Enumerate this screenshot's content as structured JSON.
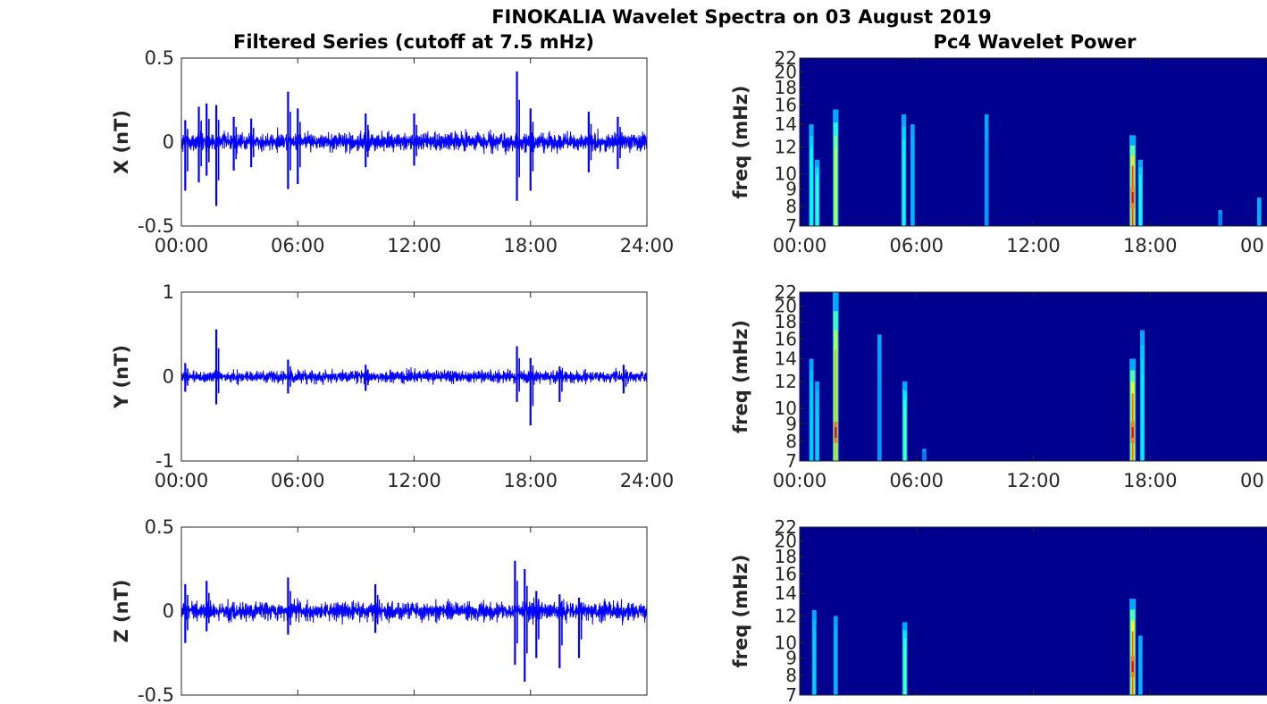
{
  "figure": {
    "suptitle": "FINOKALIA Wavelet Spectra on 03 August 2019",
    "left_column_title": "Filtered Series (cutoff at 7.5 mHz)",
    "right_column_title": "Pc4 Wavelet Power"
  },
  "colors": {
    "series": "#0000ff",
    "spectrogram_background": "#00008f",
    "axes": "#262626"
  },
  "chart_data": [
    {
      "type": "line",
      "panel": "X",
      "title": "Filtered Series (cutoff at 7.5 mHz)",
      "xlabel": "",
      "ylabel": "X (nT)",
      "xlim": [
        0,
        24
      ],
      "ylim": [
        -0.5,
        0.5
      ],
      "xticks": [
        "00:00",
        "06:00",
        "12:00",
        "18:00",
        "24:00"
      ],
      "yticks": [
        "0.5",
        "0",
        "-0.5"
      ],
      "noise_amplitude": 0.06,
      "events": [
        {
          "t": 0.2,
          "ymin": -0.29,
          "ymax": 0.13
        },
        {
          "t": 0.9,
          "ymin": -0.24,
          "ymax": 0.21
        },
        {
          "t": 1.3,
          "ymin": -0.2,
          "ymax": 0.23
        },
        {
          "t": 1.8,
          "ymin": -0.38,
          "ymax": 0.22
        },
        {
          "t": 2.7,
          "ymin": -0.17,
          "ymax": 0.15
        },
        {
          "t": 3.6,
          "ymin": -0.15,
          "ymax": 0.14
        },
        {
          "t": 5.5,
          "ymin": -0.28,
          "ymax": 0.3
        },
        {
          "t": 6.0,
          "ymin": -0.25,
          "ymax": 0.2
        },
        {
          "t": 9.5,
          "ymin": -0.15,
          "ymax": 0.17
        },
        {
          "t": 12.0,
          "ymin": -0.14,
          "ymax": 0.17
        },
        {
          "t": 17.3,
          "ymin": -0.35,
          "ymax": 0.42
        },
        {
          "t": 18.0,
          "ymin": -0.29,
          "ymax": 0.2
        },
        {
          "t": 21.0,
          "ymin": -0.18,
          "ymax": 0.18
        },
        {
          "t": 22.5,
          "ymin": -0.16,
          "ymax": 0.15
        }
      ]
    },
    {
      "type": "line",
      "panel": "Y",
      "xlabel": "",
      "ylabel": "Y (nT)",
      "xlim": [
        0,
        24
      ],
      "ylim": [
        -1,
        1
      ],
      "xticks": [
        "00:00",
        "06:00",
        "12:00",
        "18:00",
        "24:00"
      ],
      "yticks": [
        "1",
        "0",
        "-1"
      ],
      "noise_amplitude": 0.08,
      "events": [
        {
          "t": 0.2,
          "ymin": -0.18,
          "ymax": 0.16
        },
        {
          "t": 1.8,
          "ymin": -0.33,
          "ymax": 0.56
        },
        {
          "t": 5.5,
          "ymin": -0.2,
          "ymax": 0.2
        },
        {
          "t": 9.5,
          "ymin": -0.17,
          "ymax": 0.14
        },
        {
          "t": 17.3,
          "ymin": -0.3,
          "ymax": 0.36
        },
        {
          "t": 18.0,
          "ymin": -0.58,
          "ymax": 0.22
        },
        {
          "t": 19.5,
          "ymin": -0.3,
          "ymax": 0.12
        },
        {
          "t": 22.8,
          "ymin": -0.2,
          "ymax": 0.14
        }
      ]
    },
    {
      "type": "line",
      "panel": "Z",
      "xlabel": "",
      "ylabel": "Z (nT)",
      "xlim": [
        0,
        24
      ],
      "ylim": [
        -0.5,
        0.5
      ],
      "xticks": [],
      "yticks": [
        "0.5",
        "0",
        "-0.5"
      ],
      "noise_amplitude": 0.06,
      "events": [
        {
          "t": 0.2,
          "ymin": -0.19,
          "ymax": 0.16
        },
        {
          "t": 1.3,
          "ymin": -0.12,
          "ymax": 0.18
        },
        {
          "t": 5.5,
          "ymin": -0.14,
          "ymax": 0.2
        },
        {
          "t": 10.0,
          "ymin": -0.13,
          "ymax": 0.16
        },
        {
          "t": 17.2,
          "ymin": -0.32,
          "ymax": 0.3
        },
        {
          "t": 17.7,
          "ymin": -0.42,
          "ymax": 0.25
        },
        {
          "t": 18.3,
          "ymin": -0.28,
          "ymax": 0.12
        },
        {
          "t": 19.5,
          "ymin": -0.34,
          "ymax": 0.1
        },
        {
          "t": 20.5,
          "ymin": -0.28,
          "ymax": 0.08
        }
      ]
    },
    {
      "type": "heatmap",
      "panel": "X",
      "title": "Pc4 Wavelet Power",
      "xlabel": "",
      "ylabel": "freq (mHz)",
      "xlim": [
        0,
        24
      ],
      "ylim": [
        7,
        22
      ],
      "yscale": "log",
      "yticks": [
        "22",
        "20",
        "18",
        "16",
        "14",
        "12",
        "10",
        "9",
        "8",
        "7"
      ],
      "xticks": [
        "00:00",
        "06:00",
        "12:00",
        "18:00",
        "00"
      ],
      "streaks": [
        {
          "t": 0.6,
          "f_max": 14,
          "intensity": 0.45
        },
        {
          "t": 0.9,
          "f_max": 11,
          "intensity": 0.5
        },
        {
          "t": 1.85,
          "f_max": 15.5,
          "intensity": 0.75
        },
        {
          "t": 5.35,
          "f_max": 15,
          "intensity": 0.45
        },
        {
          "t": 5.8,
          "f_max": 14,
          "intensity": 0.3
        },
        {
          "t": 9.6,
          "f_max": 15,
          "intensity": 0.25
        },
        {
          "t": 17.1,
          "f_max": 13,
          "intensity": 1.0
        },
        {
          "t": 17.5,
          "f_max": 11,
          "intensity": 0.45
        },
        {
          "t": 21.6,
          "f_max": 7.8,
          "intensity": 0.2
        },
        {
          "t": 23.6,
          "f_max": 8.5,
          "intensity": 0.3
        }
      ]
    },
    {
      "type": "heatmap",
      "panel": "Y",
      "xlabel": "",
      "ylabel": "freq (mHz)",
      "xlim": [
        0,
        24
      ],
      "ylim": [
        7,
        22
      ],
      "yscale": "log",
      "yticks": [
        "22",
        "20",
        "18",
        "16",
        "14",
        "12",
        "10",
        "9",
        "8",
        "7"
      ],
      "xticks": [
        "00:00",
        "06:00",
        "12:00",
        "18:00",
        "00"
      ],
      "streaks": [
        {
          "t": 0.6,
          "f_max": 14,
          "intensity": 0.35
        },
        {
          "t": 0.9,
          "f_max": 12,
          "intensity": 0.35
        },
        {
          "t": 1.85,
          "f_max": 22,
          "intensity": 0.85
        },
        {
          "t": 4.1,
          "f_max": 16.5,
          "intensity": 0.25
        },
        {
          "t": 5.4,
          "f_max": 12,
          "intensity": 0.55
        },
        {
          "t": 6.4,
          "f_max": 7.6,
          "intensity": 0.2
        },
        {
          "t": 17.1,
          "f_max": 14,
          "intensity": 0.95
        },
        {
          "t": 17.6,
          "f_max": 17,
          "intensity": 0.4
        }
      ]
    },
    {
      "type": "heatmap",
      "panel": "Z",
      "xlabel": "",
      "ylabel": "freq (mHz)",
      "xlim": [
        0,
        24
      ],
      "ylim": [
        7,
        22
      ],
      "yscale": "log",
      "yticks": [
        "22",
        "20",
        "18",
        "16",
        "14",
        "12",
        "10",
        "9",
        "8",
        "7"
      ],
      "xticks": [],
      "streaks": [
        {
          "t": 0.75,
          "f_max": 12.5,
          "intensity": 0.35
        },
        {
          "t": 1.85,
          "f_max": 12,
          "intensity": 0.3
        },
        {
          "t": 5.4,
          "f_max": 11.5,
          "intensity": 0.55
        },
        {
          "t": 17.1,
          "f_max": 13.5,
          "intensity": 0.95
        },
        {
          "t": 17.5,
          "f_max": 10.5,
          "intensity": 0.3
        }
      ]
    }
  ]
}
